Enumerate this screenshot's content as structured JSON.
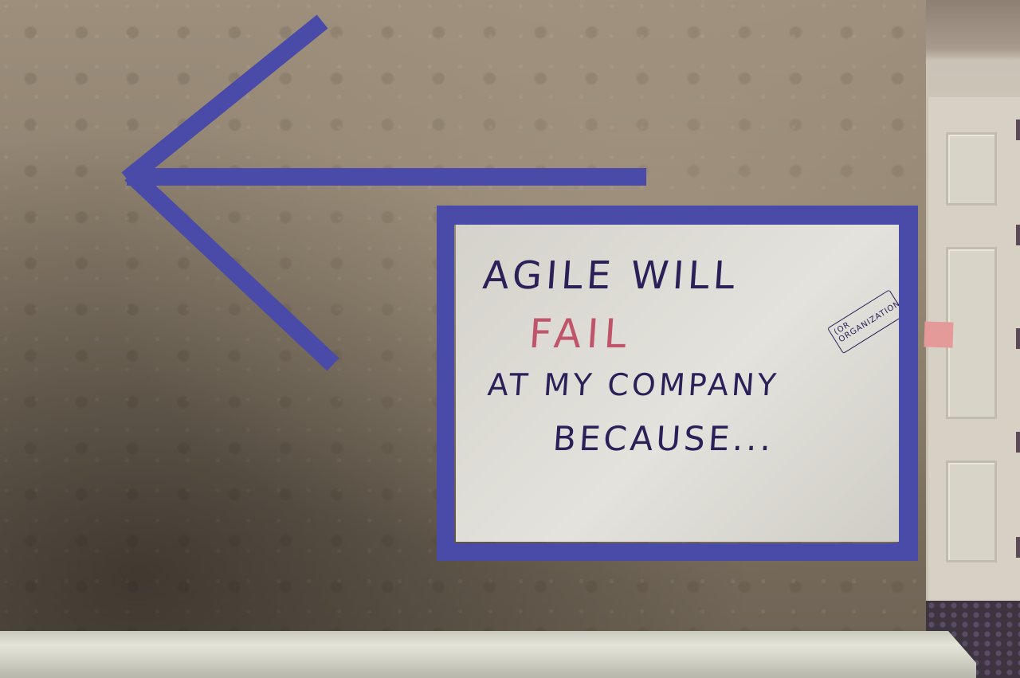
{
  "scene": {
    "wall_color": "#8a7d6b",
    "tape_color": "#4a4aa8"
  },
  "sign": {
    "line1": "AGILE WILL",
    "line2": "FAIL",
    "line3": "AT MY COMPANY",
    "line4": "BECAUSE...",
    "note": "(OR ORGANIZATION!)",
    "text_color": "#2c2058",
    "highlight_color": "#c0546a"
  }
}
